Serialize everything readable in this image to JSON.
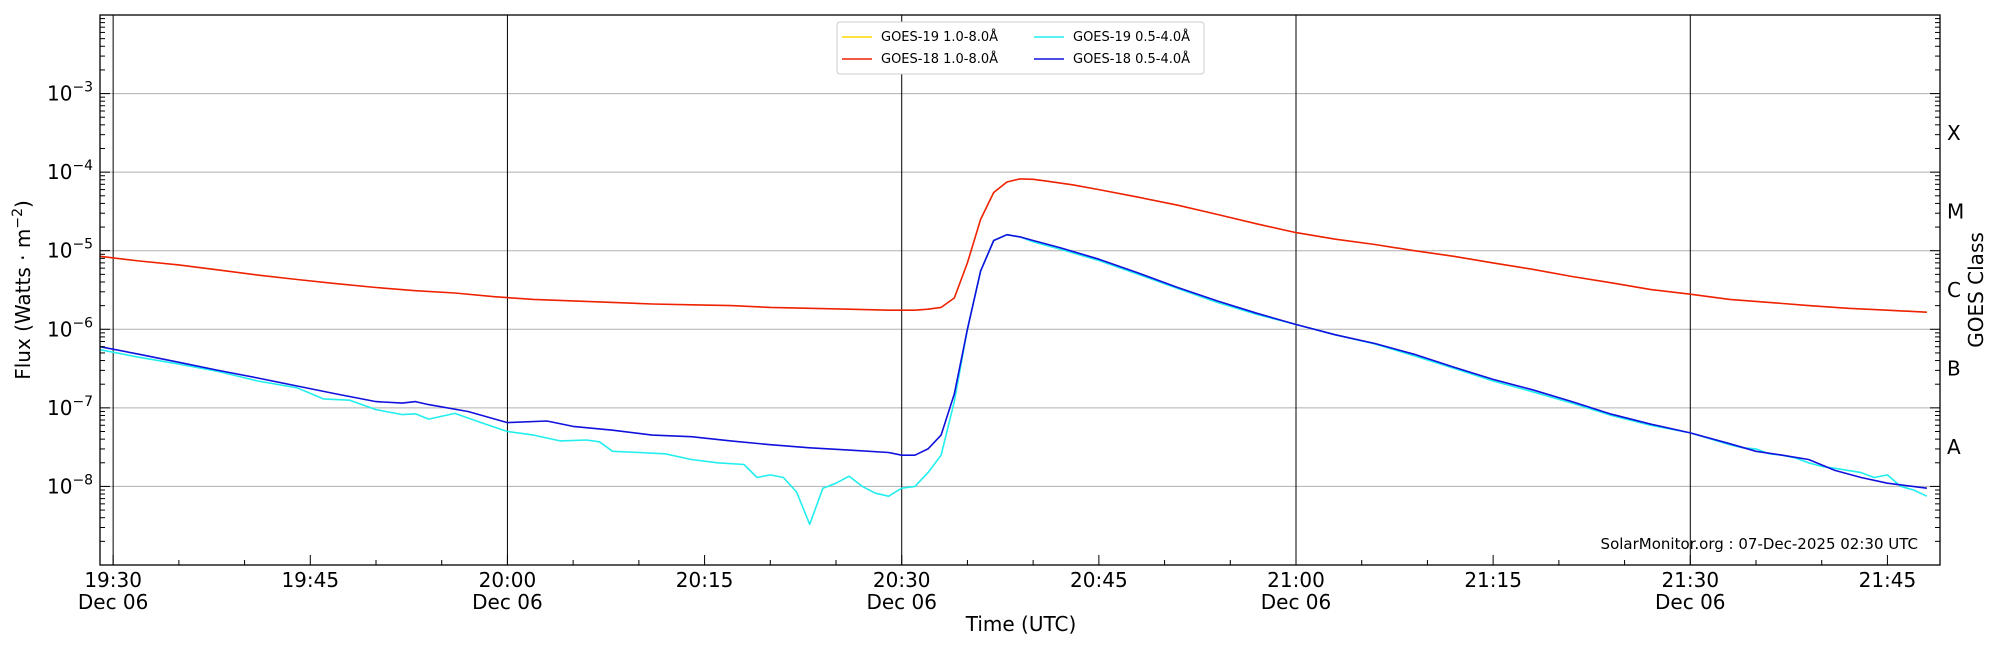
{
  "chart_data": {
    "type": "line",
    "xlabel": "Time (UTC)",
    "ylabel": "Flux (Watts · m",
    "ylabel_sup": "−2",
    "ylabel_close": ")",
    "right_label": "GOES Class",
    "watermark": "SolarMonitor.org : 07-Dec-2025 02:30 UTC",
    "y_scale": "log",
    "ylim": [
      1e-09,
      0.01
    ],
    "y_ticks": [
      {
        "exp": "−3",
        "value": 0.001
      },
      {
        "exp": "−4",
        "value": 0.0001
      },
      {
        "exp": "−5",
        "value": 1e-05
      },
      {
        "exp": "−6",
        "value": 1e-06
      },
      {
        "exp": "−7",
        "value": 1e-07
      },
      {
        "exp": "−8",
        "value": 1e-08
      }
    ],
    "goes_classes": [
      {
        "label": "X",
        "value": 0.000316
      },
      {
        "label": "M",
        "value": 3.16e-05
      },
      {
        "label": "C",
        "value": 3.16e-06
      },
      {
        "label": "B",
        "value": 3.16e-07
      },
      {
        "label": "A",
        "value": 3.16e-08
      }
    ],
    "xlim": [
      "19:29",
      "21:49"
    ],
    "x_ticks": [
      {
        "time": "19:30",
        "label": "19:30",
        "date": "Dec 06",
        "major": true
      },
      {
        "time": "19:45",
        "label": "19:45",
        "date": "",
        "major": false
      },
      {
        "time": "20:00",
        "label": "20:00",
        "date": "Dec 06",
        "major": true
      },
      {
        "time": "20:15",
        "label": "20:15",
        "date": "",
        "major": false
      },
      {
        "time": "20:30",
        "label": "20:30",
        "date": "Dec 06",
        "major": true
      },
      {
        "time": "20:45",
        "label": "20:45",
        "date": "",
        "major": false
      },
      {
        "time": "21:00",
        "label": "21:00",
        "date": "Dec 06",
        "major": true
      },
      {
        "time": "21:15",
        "label": "21:15",
        "date": "",
        "major": false
      },
      {
        "time": "21:30",
        "label": "21:30",
        "date": "Dec 06",
        "major": true
      },
      {
        "time": "21:45",
        "label": "21:45",
        "date": "",
        "major": false
      }
    ],
    "grid": "horizontal-at-decades",
    "legend_placement": "top-center",
    "series": [
      {
        "name": "GOES-19 1.0-8.0Å",
        "color": "#ffd700",
        "x": [],
        "y": []
      },
      {
        "name": "GOES-18 1.0-8.0Å",
        "color": "#ee2200",
        "x": [
          "19:29",
          "19:32",
          "19:35",
          "19:38",
          "19:41",
          "19:44",
          "19:47",
          "19:50",
          "19:53",
          "19:56",
          "19:59",
          "20:02",
          "20:05",
          "20:08",
          "20:11",
          "20:14",
          "20:17",
          "20:20",
          "20:23",
          "20:26",
          "20:29",
          "20:30",
          "20:31",
          "20:32",
          "20:33",
          "20:34",
          "20:35",
          "20:36",
          "20:37",
          "20:38",
          "20:39",
          "20:40",
          "20:41",
          "20:43",
          "20:45",
          "20:48",
          "20:51",
          "20:54",
          "20:57",
          "21:00",
          "21:03",
          "21:06",
          "21:09",
          "21:12",
          "21:15",
          "21:18",
          "21:21",
          "21:24",
          "21:27",
          "21:30",
          "21:33",
          "21:36",
          "21:39",
          "21:42",
          "21:45",
          "21:48"
        ],
        "y": [
          8.5e-06,
          7.4e-06,
          6.6e-06,
          5.7e-06,
          4.9e-06,
          4.3e-06,
          3.8e-06,
          3.4e-06,
          3.1e-06,
          2.9e-06,
          2.6e-06,
          2.4e-06,
          2.3e-06,
          2.2e-06,
          2.1e-06,
          2.05e-06,
          2e-06,
          1.9e-06,
          1.85e-06,
          1.8e-06,
          1.75e-06,
          1.75e-06,
          1.75e-06,
          1.8e-06,
          1.9e-06,
          2.5e-06,
          7e-06,
          2.5e-05,
          5.5e-05,
          7.5e-05,
          8.2e-05,
          8.1e-05,
          7.7e-05,
          6.9e-05,
          6e-05,
          4.8e-05,
          3.8e-05,
          2.9e-05,
          2.2e-05,
          1.7e-05,
          1.4e-05,
          1.2e-05,
          1e-05,
          8.5e-06,
          7e-06,
          5.8e-06,
          4.7e-06,
          3.9e-06,
          3.2e-06,
          2.8e-06,
          2.4e-06,
          2.2e-06,
          2e-06,
          1.85e-06,
          1.75e-06,
          1.65e-06
        ]
      },
      {
        "name": "GOES-19 0.5-4.0Å",
        "color": "#22eeee",
        "x": [
          "19:29",
          "19:32",
          "19:35",
          "19:38",
          "19:41",
          "19:44",
          "19:46",
          "19:48",
          "19:50",
          "19:52",
          "19:53",
          "19:54",
          "19:56",
          "19:58",
          "20:00",
          "20:02",
          "20:04",
          "20:06",
          "20:07",
          "20:08",
          "20:10",
          "20:12",
          "20:14",
          "20:16",
          "20:18",
          "20:19",
          "20:20",
          "20:21",
          "20:22",
          "20:23",
          "20:24",
          "20:25",
          "20:26",
          "20:27",
          "20:28",
          "20:29",
          "20:30",
          "20:31",
          "20:32",
          "20:33",
          "20:34",
          "20:35",
          "20:36",
          "20:37",
          "20:38",
          "20:39",
          "20:40",
          "20:42",
          "20:45",
          "20:48",
          "20:51",
          "20:54",
          "20:57",
          "21:00",
          "21:03",
          "21:06",
          "21:09",
          "21:12",
          "21:15",
          "21:18",
          "21:21",
          "21:24",
          "21:27",
          "21:30",
          "21:33",
          "21:34",
          "21:35",
          "21:36",
          "21:37",
          "21:38",
          "21:39",
          "21:40",
          "21:41",
          "21:42",
          "21:43",
          "21:44",
          "21:45",
          "21:46",
          "21:47",
          "21:48"
        ],
        "y": [
          5.5e-07,
          4.4e-07,
          3.6e-07,
          2.9e-07,
          2.2e-07,
          1.8e-07,
          1.3e-07,
          1.25e-07,
          9.5e-08,
          8.2e-08,
          8.4e-08,
          7.2e-08,
          8.5e-08,
          6.5e-08,
          5e-08,
          4.5e-08,
          3.8e-08,
          3.9e-08,
          3.7e-08,
          2.8e-08,
          2.7e-08,
          2.6e-08,
          2.2e-08,
          2e-08,
          1.9e-08,
          1.3e-08,
          1.4e-08,
          1.3e-08,
          8.5e-09,
          3.3e-09,
          9.5e-09,
          1.1e-08,
          1.35e-08,
          1e-08,
          8.2e-09,
          7.5e-09,
          9.5e-09,
          1e-08,
          1.5e-08,
          2.5e-08,
          1.2e-07,
          1e-06,
          5.5e-06,
          1.35e-05,
          1.6e-05,
          1.5e-05,
          1.3e-05,
          1.05e-05,
          7.5e-06,
          5e-06,
          3.3e-06,
          2.2e-06,
          1.55e-06,
          1.15e-06,
          8.5e-07,
          6.5e-07,
          4.6e-07,
          3.2e-07,
          2.2e-07,
          1.6e-07,
          1.15e-07,
          8e-08,
          6e-08,
          4.8e-08,
          3.4e-08,
          3.1e-08,
          3e-08,
          2.6e-08,
          2.5e-08,
          2.3e-08,
          2e-08,
          1.8e-08,
          1.7e-08,
          1.6e-08,
          1.5e-08,
          1.3e-08,
          1.4e-08,
          1e-08,
          9e-09,
          7.5e-09
        ]
      },
      {
        "name": "GOES-18 0.5-4.0Å",
        "color": "#1111dd",
        "x": [
          "19:29",
          "19:32",
          "19:35",
          "19:38",
          "19:41",
          "19:44",
          "19:47",
          "19:50",
          "19:52",
          "19:53",
          "19:54",
          "19:57",
          "20:00",
          "20:03",
          "20:05",
          "20:08",
          "20:11",
          "20:14",
          "20:17",
          "20:20",
          "20:23",
          "20:26",
          "20:29",
          "20:30",
          "20:31",
          "20:32",
          "20:33",
          "20:34",
          "20:35",
          "20:36",
          "20:37",
          "20:38",
          "20:39",
          "20:40",
          "20:42",
          "20:45",
          "20:48",
          "20:51",
          "20:54",
          "20:57",
          "21:00",
          "21:03",
          "21:06",
          "21:09",
          "21:12",
          "21:15",
          "21:18",
          "21:21",
          "21:24",
          "21:27",
          "21:30",
          "21:33",
          "21:35",
          "21:37",
          "21:39",
          "21:41",
          "21:43",
          "21:45",
          "21:48"
        ],
        "y": [
          6e-07,
          4.8e-07,
          3.8e-07,
          3e-07,
          2.4e-07,
          1.9e-07,
          1.5e-07,
          1.2e-07,
          1.15e-07,
          1.2e-07,
          1.1e-07,
          9e-08,
          6.5e-08,
          6.8e-08,
          5.8e-08,
          5.2e-08,
          4.5e-08,
          4.3e-08,
          3.8e-08,
          3.4e-08,
          3.1e-08,
          2.9e-08,
          2.7e-08,
          2.5e-08,
          2.5e-08,
          3e-08,
          4.5e-08,
          1.5e-07,
          1e-06,
          5.5e-06,
          1.35e-05,
          1.6e-05,
          1.5e-05,
          1.35e-05,
          1.1e-05,
          7.8e-06,
          5.2e-06,
          3.4e-06,
          2.3e-06,
          1.6e-06,
          1.15e-06,
          8.5e-07,
          6.6e-07,
          4.8e-07,
          3.3e-07,
          2.3e-07,
          1.7e-07,
          1.2e-07,
          8.3e-08,
          6.2e-08,
          4.8e-08,
          3.5e-08,
          2.8e-08,
          2.5e-08,
          2.2e-08,
          1.6e-08,
          1.3e-08,
          1.1e-08,
          9.5e-09
        ]
      }
    ]
  }
}
